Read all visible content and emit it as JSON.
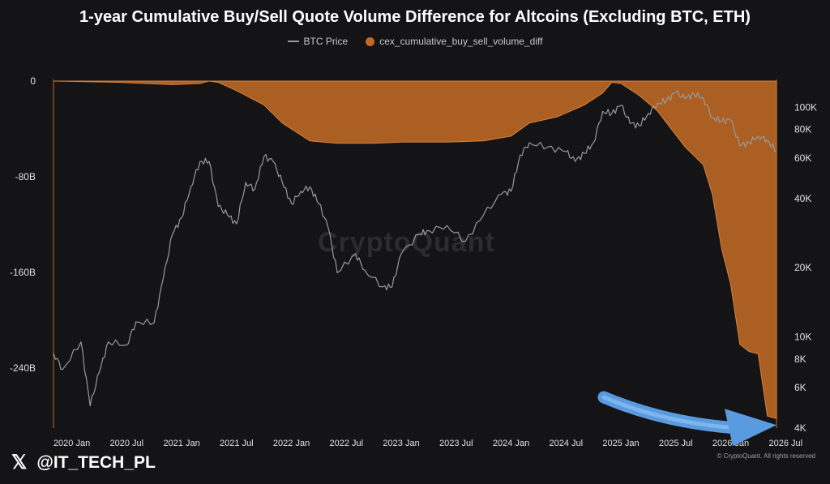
{
  "chart_data": {
    "type": "area",
    "title": "1-year Cumulative Buy/Sell Quote Volume Difference for Altcoins (Excluding BTC, ETH)",
    "legend": {
      "placement": "top-center",
      "items": [
        {
          "label": "BTC Price",
          "color": "#9a9a9a",
          "marker": "line"
        },
        {
          "label": "cex_cumulative_buy_sell_volume_diff",
          "color": "#c06a26",
          "marker": "dot"
        }
      ]
    },
    "x_axis": {
      "ticks": [
        "2020 Jan",
        "2020 Jul",
        "2021 Jan",
        "2021 Jul",
        "2022 Jan",
        "2022 Jul",
        "2023 Jan",
        "2023 Jul",
        "2024 Jan",
        "2024 Jul",
        "2025 Jan",
        "2025 Jul",
        "2026 Jan",
        "2026 Jul"
      ],
      "range": [
        "2019-11",
        "2026-06"
      ]
    },
    "y_left": {
      "ticks": [
        {
          "value": 0,
          "label": "0"
        },
        {
          "value": -80,
          "label": "-80B"
        },
        {
          "value": -160,
          "label": "-160B"
        },
        {
          "value": -240,
          "label": "-240B"
        }
      ],
      "range": [
        -290,
        0
      ]
    },
    "y_right": {
      "scale": "log",
      "ticks": [
        {
          "value": 100000,
          "label": "100K"
        },
        {
          "value": 80000,
          "label": "80K"
        },
        {
          "value": 60000,
          "label": "60K"
        },
        {
          "value": 40000,
          "label": "40K"
        },
        {
          "value": 20000,
          "label": "20K"
        },
        {
          "value": 10000,
          "label": "10K"
        },
        {
          "value": 8000,
          "label": "8K"
        },
        {
          "value": 6000,
          "label": "6K"
        },
        {
          "value": 4000,
          "label": "4K"
        }
      ],
      "range": [
        4000,
        130000
      ]
    },
    "grid": false,
    "series": [
      {
        "name": "cex_cumulative_buy_sell_volume_diff",
        "axis": "left",
        "style": "area",
        "color": "#c06a26",
        "points": [
          [
            "2019-11",
            0
          ],
          [
            "2020-06",
            -1
          ],
          [
            "2020-12",
            -3
          ],
          [
            "2021-03",
            -2
          ],
          [
            "2021-04",
            0
          ],
          [
            "2021-05",
            -1
          ],
          [
            "2021-07",
            -8
          ],
          [
            "2021-10",
            -20
          ],
          [
            "2021-12",
            -35
          ],
          [
            "2022-03",
            -50
          ],
          [
            "2022-06",
            -52
          ],
          [
            "2022-10",
            -52
          ],
          [
            "2023-01",
            -51
          ],
          [
            "2023-06",
            -51
          ],
          [
            "2023-10",
            -50
          ],
          [
            "2024-01",
            -46
          ],
          [
            "2024-03",
            -35
          ],
          [
            "2024-06",
            -30
          ],
          [
            "2024-09",
            -20
          ],
          [
            "2024-11",
            -10
          ],
          [
            "2024-12",
            -1
          ],
          [
            "2025-01",
            -2
          ],
          [
            "2025-03",
            -12
          ],
          [
            "2025-05",
            -25
          ],
          [
            "2025-06",
            -35
          ],
          [
            "2025-08",
            -55
          ],
          [
            "2025-10",
            -70
          ],
          [
            "2025-11",
            -95
          ],
          [
            "2025-12",
            -140
          ],
          [
            "2026-01",
            -170
          ],
          [
            "2026-02",
            -220
          ],
          [
            "2026-03",
            -226
          ],
          [
            "2026-04",
            -228
          ],
          [
            "2026-05",
            -280
          ],
          [
            "2026-06",
            -282
          ]
        ]
      },
      {
        "name": "BTC Price",
        "axis": "right",
        "style": "line",
        "color": "#9a9a9a",
        "points": [
          [
            "2019-11",
            8500
          ],
          [
            "2019-12",
            7200
          ],
          [
            "2020-02",
            9500
          ],
          [
            "2020-03",
            5000
          ],
          [
            "2020-04",
            7000
          ],
          [
            "2020-05",
            9500
          ],
          [
            "2020-07",
            9200
          ],
          [
            "2020-08",
            11600
          ],
          [
            "2020-10",
            11500
          ],
          [
            "2020-11",
            18000
          ],
          [
            "2020-12",
            28000
          ],
          [
            "2021-01",
            33000
          ],
          [
            "2021-02",
            45000
          ],
          [
            "2021-03",
            58000
          ],
          [
            "2021-04",
            58000
          ],
          [
            "2021-05",
            37000
          ],
          [
            "2021-06",
            34000
          ],
          [
            "2021-07",
            31000
          ],
          [
            "2021-08",
            47000
          ],
          [
            "2021-09",
            44000
          ],
          [
            "2021-10",
            61000
          ],
          [
            "2021-11",
            58000
          ],
          [
            "2021-12",
            47000
          ],
          [
            "2022-01",
            38000
          ],
          [
            "2022-02",
            43000
          ],
          [
            "2022-03",
            45000
          ],
          [
            "2022-04",
            38000
          ],
          [
            "2022-05",
            30000
          ],
          [
            "2022-06",
            19000
          ],
          [
            "2022-08",
            23000
          ],
          [
            "2022-09",
            19500
          ],
          [
            "2022-11",
            16500
          ],
          [
            "2022-12",
            16500
          ],
          [
            "2023-01",
            23000
          ],
          [
            "2023-03",
            28000
          ],
          [
            "2023-04",
            29000
          ],
          [
            "2023-06",
            30500
          ],
          [
            "2023-08",
            26000
          ],
          [
            "2023-10",
            34000
          ],
          [
            "2023-12",
            42000
          ],
          [
            "2024-01",
            43000
          ],
          [
            "2024-02",
            62000
          ],
          [
            "2024-03",
            70000
          ],
          [
            "2024-05",
            67000
          ],
          [
            "2024-07",
            64000
          ],
          [
            "2024-08",
            58000
          ],
          [
            "2024-09",
            63000
          ],
          [
            "2024-10",
            70000
          ],
          [
            "2024-11",
            96000
          ],
          [
            "2024-12",
            94000
          ],
          [
            "2025-01",
            102000
          ],
          [
            "2025-02",
            85000
          ],
          [
            "2025-03",
            83000
          ],
          [
            "2025-04",
            94000
          ],
          [
            "2025-05",
            104000
          ],
          [
            "2025-06",
            107000
          ],
          [
            "2025-07",
            116000
          ],
          [
            "2025-08",
            109000
          ],
          [
            "2025-09",
            114000
          ],
          [
            "2025-10",
            110000
          ],
          [
            "2025-11",
            90000
          ],
          [
            "2025-12",
            87000
          ],
          [
            "2026-01",
            88000
          ],
          [
            "2026-02",
            68000
          ],
          [
            "2026-03",
            70000
          ],
          [
            "2026-04",
            75000
          ],
          [
            "2026-05",
            72000
          ],
          [
            "2026-06",
            64000
          ]
        ]
      }
    ],
    "annotations": [
      {
        "type": "curved-arrow",
        "color": "#5a9be0",
        "points_to": "end of cex_cumulative_buy_sell_volume_diff"
      }
    ]
  },
  "watermark": "CryptoQuant",
  "footer": {
    "handle": "@IT_TECH_PL",
    "x_logo": "𝕏",
    "copyright": "© CryptoQuant. All rights reserved"
  }
}
